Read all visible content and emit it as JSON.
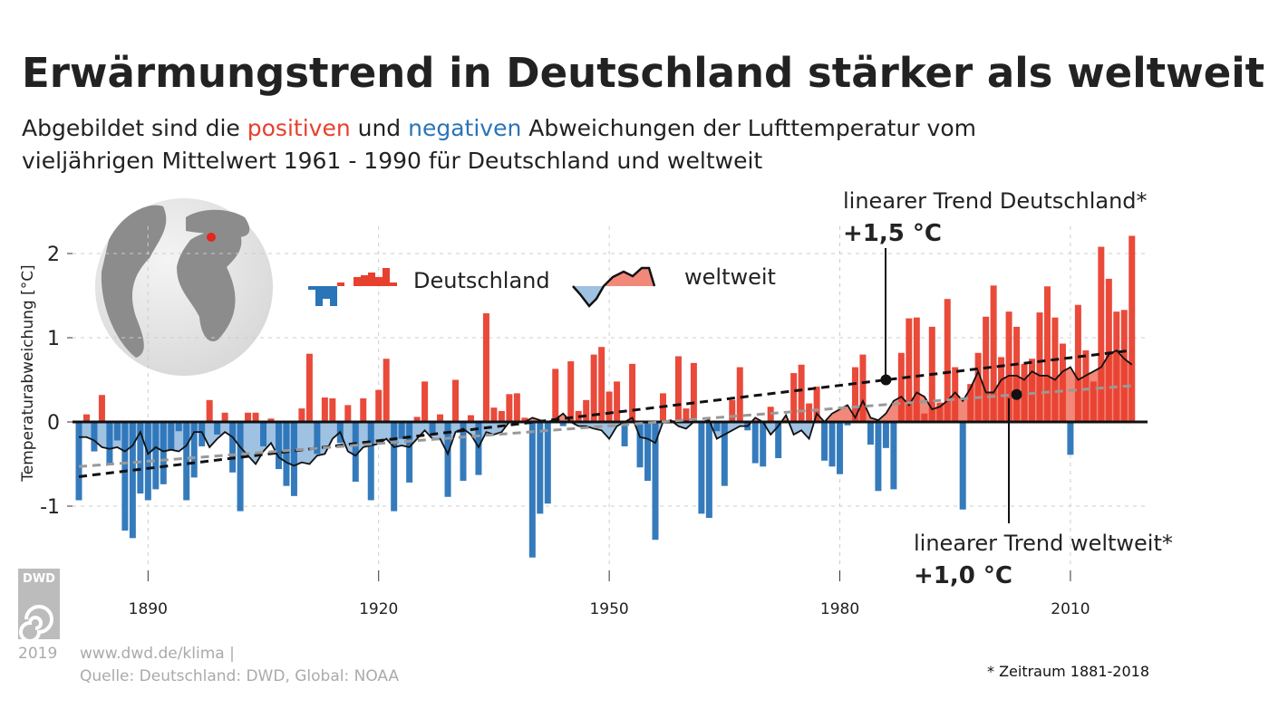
{
  "title": "Erwärmungstrend in Deutschland stärker als weltweit",
  "subtitle": {
    "line1_pre": "Abgebildet sind die ",
    "positive": "positiven",
    "line1_mid": " und ",
    "negative": "negativen",
    "line1_post": " Abweichungen der Lufttemperatur vom",
    "line2": "vieljährigen Mittelwert 1961 - 1990 für Deutschland und weltweit"
  },
  "colors": {
    "positive": "#e8402f",
    "negative": "#2a74b8",
    "global_neg_fill": "#9fc1e2",
    "global_pos_fill": "#f2887a",
    "trend_global": "#999999"
  },
  "legend": {
    "germany": "Deutschland",
    "global": "weltweit",
    "placement": "top-center"
  },
  "annotations": {
    "germany_trend_label": "linearer Trend Deutschland*",
    "germany_trend_value": "+1,5 °C",
    "global_trend_label": "linearer Trend weltweit*",
    "global_trend_value": "+1,0 °C"
  },
  "footer": {
    "logo_text": "DWD",
    "year": "2019",
    "url": "www.dwd.de/klima |",
    "source": "Quelle: Deutschland: DWD, Global: NOAA",
    "note": "* Zeitraum 1881-2018"
  },
  "chart_data": {
    "type": "bar",
    "ylabel": "Temperaturabweichung [°C]",
    "xlabel": "",
    "xlim": [
      1881,
      2018
    ],
    "ylim": [
      -1.7,
      2.4
    ],
    "x_ticks": [
      "1890",
      "1920",
      "1950",
      "1980",
      "2010"
    ],
    "y_ticks": [
      "2",
      "1",
      "0",
      "-1"
    ],
    "grid": true,
    "years_start": 1881,
    "series": [
      {
        "name": "Deutschland",
        "type": "bar",
        "values": [
          -0.93,
          0.09,
          -0.35,
          0.32,
          -0.49,
          -0.22,
          -1.29,
          -1.38,
          -0.85,
          -0.93,
          -0.8,
          -0.74,
          -0.33,
          -0.11,
          -0.93,
          -0.66,
          -0.29,
          0.26,
          -0.15,
          0.11,
          -0.6,
          -1.06,
          0.11,
          0.11,
          -0.29,
          0.04,
          -0.56,
          -0.76,
          -0.88,
          0.16,
          0.81,
          -0.38,
          0.29,
          0.28,
          -0.25,
          0.2,
          -0.71,
          0.28,
          -0.93,
          0.38,
          0.75,
          -1.06,
          -0.2,
          -0.72,
          0.06,
          0.48,
          -0.13,
          0.09,
          -0.89,
          0.5,
          -0.7,
          0.08,
          -0.63,
          1.29,
          0.17,
          0.13,
          0.33,
          0.34,
          0.05,
          -1.61,
          -1.09,
          -0.97,
          0.63,
          -0.05,
          0.72,
          0.13,
          0.26,
          0.8,
          0.89,
          0.36,
          0.48,
          -0.29,
          0.69,
          -0.54,
          -0.7,
          -1.4,
          0.34,
          0.02,
          0.78,
          0.16,
          0.7,
          -1.09,
          -1.14,
          -0.11,
          -0.76,
          0.26,
          0.65,
          -0.1,
          -0.49,
          -0.53,
          0.18,
          -0.43,
          0.02,
          0.58,
          0.68,
          0.22,
          0.42,
          -0.46,
          -0.53,
          -0.62,
          -0.04,
          0.65,
          0.8,
          -0.27,
          -0.82,
          -0.31,
          -0.8,
          0.82,
          1.23,
          1.24,
          0.1,
          1.13,
          0.23,
          1.46,
          0.65,
          -1.04,
          0.45,
          0.82,
          1.25,
          1.62,
          0.77,
          1.31,
          1.13,
          0.69,
          0.75,
          1.3,
          1.61,
          1.24,
          0.93,
          -0.39,
          1.39,
          0.85,
          0.48,
          2.08,
          1.7,
          1.31,
          1.33,
          2.21
        ]
      },
      {
        "name": "weltweit",
        "type": "area-line",
        "values": [
          -0.18,
          -0.18,
          -0.22,
          -0.3,
          -0.32,
          -0.3,
          -0.35,
          -0.28,
          -0.12,
          -0.38,
          -0.3,
          -0.35,
          -0.33,
          -0.35,
          -0.28,
          -0.12,
          -0.12,
          -0.3,
          -0.2,
          -0.12,
          -0.18,
          -0.3,
          -0.4,
          -0.5,
          -0.35,
          -0.25,
          -0.42,
          -0.48,
          -0.52,
          -0.48,
          -0.5,
          -0.4,
          -0.38,
          -0.2,
          -0.12,
          -0.35,
          -0.4,
          -0.3,
          -0.28,
          -0.26,
          -0.2,
          -0.3,
          -0.28,
          -0.3,
          -0.2,
          -0.1,
          -0.2,
          -0.2,
          -0.38,
          -0.12,
          -0.08,
          -0.15,
          -0.3,
          -0.12,
          -0.15,
          -0.12,
          0.0,
          0.0,
          0.0,
          0.05,
          0.02,
          0.0,
          0.03,
          0.1,
          0.0,
          -0.05,
          -0.05,
          -0.08,
          -0.1,
          -0.2,
          -0.05,
          0.0,
          0.05,
          -0.18,
          -0.2,
          -0.25,
          0.0,
          0.02,
          -0.05,
          -0.08,
          0.0,
          0.0,
          0.02,
          -0.2,
          -0.15,
          -0.1,
          -0.05,
          -0.05,
          0.05,
          0.0,
          -0.15,
          -0.05,
          0.08,
          -0.15,
          -0.1,
          -0.2,
          0.1,
          0.0,
          0.1,
          0.15,
          0.2,
          0.05,
          0.25,
          0.05,
          0.02,
          0.1,
          0.25,
          0.3,
          0.2,
          0.35,
          0.3,
          0.15,
          0.18,
          0.25,
          0.35,
          0.25,
          0.4,
          0.6,
          0.35,
          0.35,
          0.5,
          0.55,
          0.55,
          0.5,
          0.6,
          0.55,
          0.55,
          0.5,
          0.6,
          0.65,
          0.5,
          0.55,
          0.6,
          0.65,
          0.8,
          0.85,
          0.75,
          0.68
        ]
      }
    ],
    "trends": [
      {
        "name": "linearer Trend Deutschland",
        "start": [
          1881,
          -0.65
        ],
        "end": [
          2018,
          0.85
        ],
        "marker_year": 1986,
        "total_change": 1.5
      },
      {
        "name": "linearer Trend weltweit",
        "start": [
          1881,
          -0.53
        ],
        "end": [
          2018,
          0.43
        ],
        "marker_year": 2003,
        "total_change": 1.0
      }
    ]
  }
}
